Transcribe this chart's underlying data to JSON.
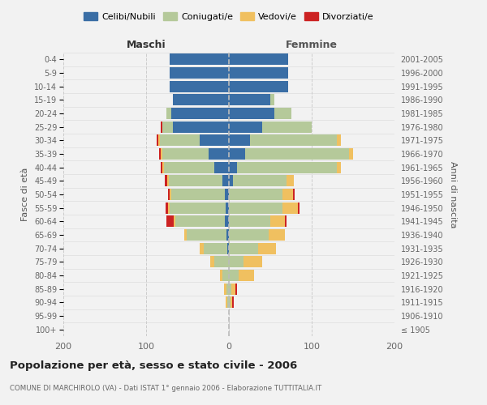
{
  "age_groups": [
    "100+",
    "95-99",
    "90-94",
    "85-89",
    "80-84",
    "75-79",
    "70-74",
    "65-69",
    "60-64",
    "55-59",
    "50-54",
    "45-49",
    "40-44",
    "35-39",
    "30-34",
    "25-29",
    "20-24",
    "15-19",
    "10-14",
    "5-9",
    "0-4"
  ],
  "birth_years": [
    "≤ 1905",
    "1906-1910",
    "1911-1915",
    "1916-1920",
    "1921-1925",
    "1926-1930",
    "1931-1935",
    "1936-1940",
    "1941-1945",
    "1946-1950",
    "1951-1955",
    "1956-1960",
    "1961-1965",
    "1966-1970",
    "1971-1975",
    "1976-1980",
    "1981-1985",
    "1986-1990",
    "1991-1995",
    "1996-2000",
    "2001-2005"
  ],
  "males": {
    "celibe": [
      0,
      0,
      0,
      0,
      0,
      0,
      2,
      3,
      5,
      4,
      5,
      8,
      18,
      25,
      35,
      68,
      70,
      68,
      72,
      72,
      72
    ],
    "coniugato": [
      0,
      0,
      2,
      3,
      8,
      18,
      28,
      48,
      60,
      68,
      65,
      65,
      60,
      55,
      48,
      12,
      5,
      0,
      0,
      0,
      0
    ],
    "vedovo": [
      0,
      0,
      2,
      3,
      3,
      5,
      5,
      3,
      2,
      2,
      2,
      2,
      2,
      2,
      2,
      0,
      0,
      0,
      0,
      0,
      0
    ],
    "divorziato": [
      0,
      0,
      0,
      0,
      0,
      0,
      0,
      0,
      8,
      2,
      2,
      2,
      2,
      2,
      2,
      2,
      0,
      0,
      0,
      0,
      0
    ]
  },
  "females": {
    "nubile": [
      0,
      0,
      0,
      0,
      0,
      0,
      0,
      0,
      0,
      0,
      0,
      5,
      10,
      20,
      25,
      40,
      55,
      50,
      72,
      72,
      72
    ],
    "coniugata": [
      0,
      0,
      2,
      3,
      12,
      18,
      35,
      48,
      50,
      65,
      65,
      65,
      120,
      125,
      105,
      60,
      20,
      5,
      0,
      0,
      0
    ],
    "vedova": [
      0,
      0,
      2,
      5,
      18,
      22,
      22,
      20,
      18,
      18,
      12,
      8,
      5,
      5,
      5,
      0,
      0,
      0,
      0,
      0,
      0
    ],
    "divorziata": [
      0,
      0,
      2,
      2,
      0,
      0,
      0,
      0,
      2,
      2,
      2,
      0,
      0,
      0,
      0,
      0,
      0,
      0,
      0,
      0,
      0
    ]
  },
  "colors": {
    "celibe": "#3a6ea5",
    "coniugato": "#b5c99a",
    "vedovo": "#f0c060",
    "divorziato": "#cc2222"
  },
  "legend_labels": [
    "Celibi/Nubili",
    "Coniugati/e",
    "Vedovi/e",
    "Divorziati/e"
  ],
  "title": "Popolazione per età, sesso e stato civile - 2006",
  "subtitle": "COMUNE DI MARCHIROLO (VA) - Dati ISTAT 1° gennaio 2006 - Elaborazione TUTTITALIA.IT",
  "xlabel_left": "Maschi",
  "xlabel_right": "Femmine",
  "ylabel_left": "Fasce di età",
  "ylabel_right": "Anni di nascita",
  "xlim": 200,
  "background_color": "#f2f2f2"
}
